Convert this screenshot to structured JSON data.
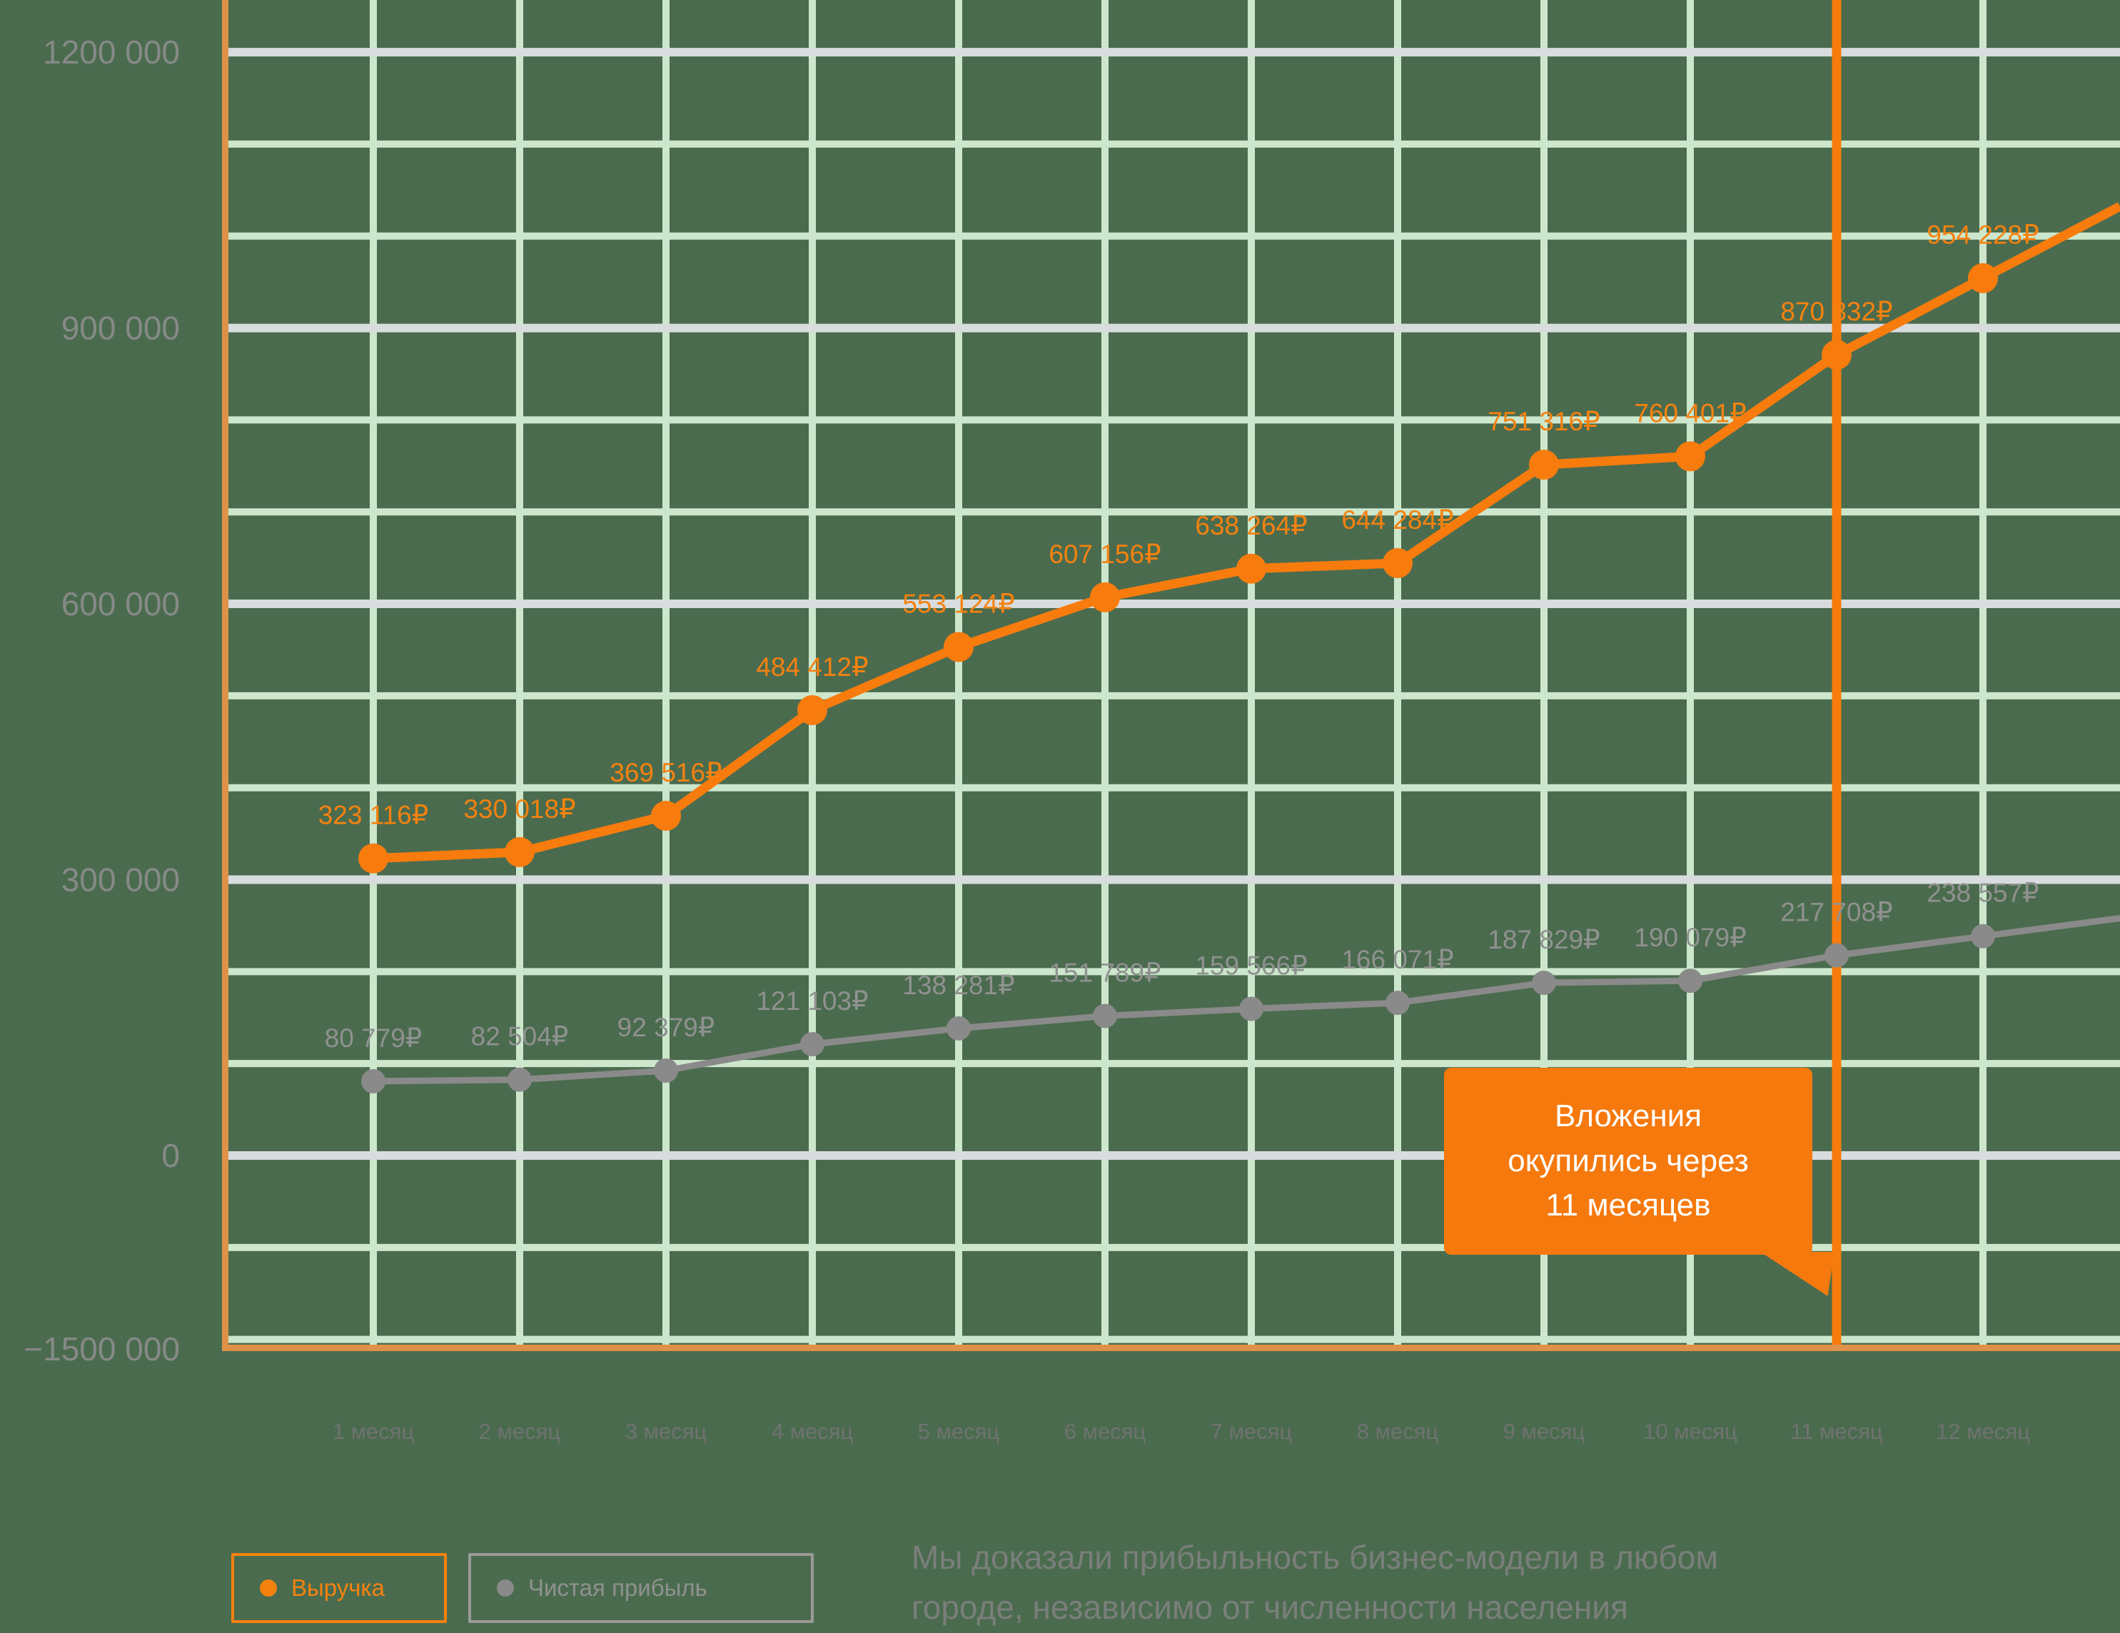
{
  "colors": {
    "background": "#4b6b4e",
    "grid_minor": "#cde7cd",
    "grid_major": "#d8dcde",
    "axis": "#de9249",
    "revenue": "#f5790d",
    "profit": "#8a8a8a",
    "label_revenue": "#f5820f",
    "label_profit": "#8f9290",
    "y_label": "#868a87",
    "x_label": "#6e7370",
    "callout_bg": "#f5790d",
    "callout_text": "#ffffff",
    "footnote_text": "#7a7f7b"
  },
  "legend": {
    "revenue": "Выручка",
    "profit": "Чистая прибыль"
  },
  "annotation": {
    "text": "Вложения\nокупились через\n11 месяцев",
    "payback_month": "11 месяц"
  },
  "footnote": "Мы доказали прибыльность бизнес-модели в любом\nгороде, независимо от численности населения",
  "chart_data": {
    "type": "line",
    "categories": [
      "1 месяц",
      "2 месяц",
      "3 месяц",
      "4 месяц",
      "5 месяц",
      "6 месяц",
      "7 месяц",
      "8 месяц",
      "9 месяц",
      "10 месяц",
      "11 месяц",
      "12 месяц"
    ],
    "series": [
      {
        "name": "Выручка",
        "color": "#f77c0d",
        "values": [
          323116,
          330018,
          369516,
          484412,
          553124,
          607156,
          638264,
          644284,
          751316,
          760401,
          870832,
          954228
        ],
        "labels": [
          "323 116₽",
          "330 018₽",
          "369 516₽",
          "484 412₽",
          "553 124₽",
          "607 156₽",
          "638 264₽",
          "644 284₽",
          "751 316₽",
          "760 401₽",
          "870 832₽",
          "954 228₽"
        ]
      },
      {
        "name": "Чистая прибыль",
        "color": "#8a8a8a",
        "values": [
          80779,
          82504,
          92379,
          121103,
          138281,
          151789,
          159566,
          166071,
          187829,
          190079,
          217708,
          238557
        ],
        "labels": [
          "80 779₽",
          "82 504₽",
          "92 379₽",
          "121 103₽",
          "138 281₽",
          "151 789₽",
          "159 566₽",
          "166 071₽",
          "187 829₽",
          "190 079₽",
          "217 708₽",
          "238 557₽"
        ]
      }
    ],
    "y_ticks": [
      {
        "label": "1200 000",
        "value": 1200000
      },
      {
        "label": "900 000",
        "value": 900000
      },
      {
        "label": "600 000",
        "value": 600000
      },
      {
        "label": "300 000",
        "value": 300000
      },
      {
        "label": "0",
        "value": 0
      },
      {
        "label": "−1500 000",
        "value": null
      }
    ],
    "y_minor_step": 100000,
    "value_suffix": "₽",
    "vline_month_index": 10,
    "grid": "on",
    "legend_position": "bottom-left"
  }
}
